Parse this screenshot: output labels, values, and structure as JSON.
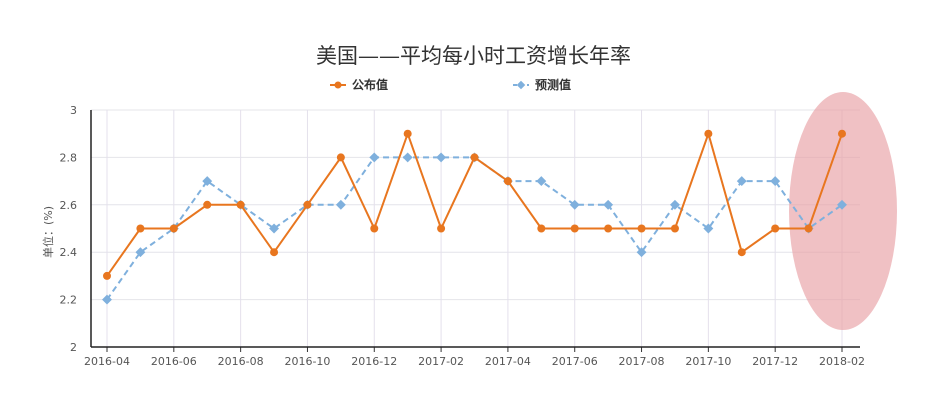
{
  "chart_data": {
    "type": "line",
    "title": "美国——平均每小时工资增长年率",
    "ylabel": "单位：(%)",
    "xlabel": "",
    "ylim": [
      2,
      3
    ],
    "yticks": [
      "2",
      "2.2",
      "2.4",
      "2.6",
      "2.8",
      "3"
    ],
    "x": [
      "2016-04",
      "2016-05",
      "2016-06",
      "2016-07",
      "2016-08",
      "2016-09",
      "2016-10",
      "2016-11",
      "2016-12",
      "2017-01",
      "2017-02",
      "2017-03",
      "2017-04",
      "2017-05",
      "2017-06",
      "2017-07",
      "2017-08",
      "2017-09",
      "2017-10",
      "2017-11",
      "2017-12",
      "2018-01",
      "2018-02"
    ],
    "xticks": [
      "2016-04",
      "2016-06",
      "2016-08",
      "2016-10",
      "2016-12",
      "2017-02",
      "2017-04",
      "2017-06",
      "2017-08",
      "2017-10",
      "2017-12",
      "2018-02"
    ],
    "grid": true,
    "legend_position": "top",
    "series": [
      {
        "name": "公布值",
        "color": "#e8761f",
        "style": "solid",
        "marker": "circle",
        "values": [
          2.3,
          2.5,
          2.5,
          2.6,
          2.6,
          2.4,
          2.6,
          2.8,
          2.5,
          2.9,
          2.5,
          2.8,
          2.7,
          2.5,
          2.5,
          2.5,
          2.5,
          2.5,
          2.9,
          2.4,
          2.5,
          2.5,
          2.9
        ]
      },
      {
        "name": "预测值",
        "color": "#7fb0dd",
        "style": "dashed",
        "marker": "diamond",
        "values": [
          2.2,
          2.4,
          2.5,
          2.7,
          2.6,
          2.5,
          2.6,
          2.6,
          2.8,
          2.8,
          2.8,
          2.8,
          2.7,
          2.7,
          2.6,
          2.6,
          2.4,
          2.6,
          2.5,
          2.7,
          2.7,
          2.5,
          2.6
        ]
      }
    ],
    "highlight_color": "#e8a0a4"
  }
}
